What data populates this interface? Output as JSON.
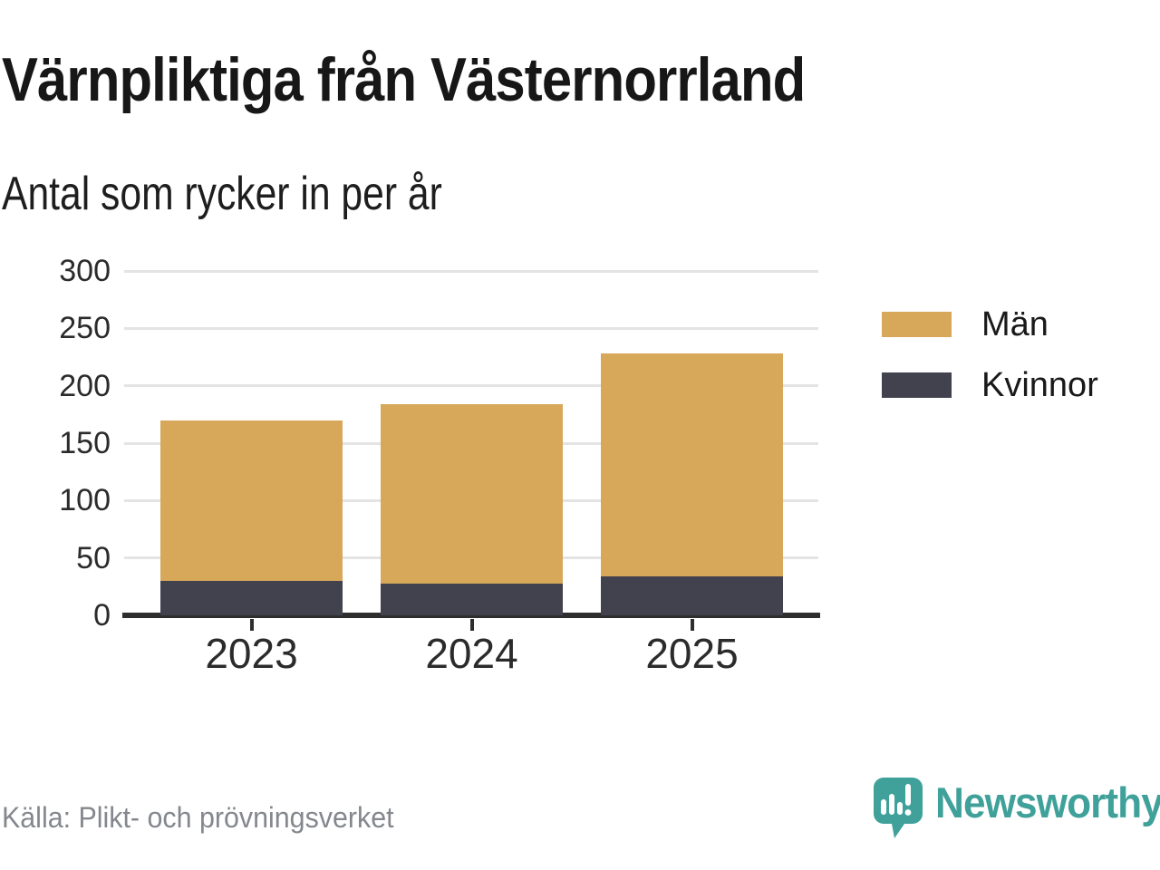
{
  "title": "Värnpliktiga från Västernorrland",
  "subtitle": "Antal som rycker in per år",
  "source": "Källa: Plikt- och prövningsverket",
  "brand": {
    "name": "Newsworthy",
    "color": "#3FA19A",
    "icon": "newsworthy-logo-icon"
  },
  "colors": {
    "man_gold": "#D8A85A",
    "kvinnor_dark": "#42424F",
    "gridline": "#E4E4E4",
    "axis": "#2E2E2E",
    "title_text": "#171717",
    "source_text": "#84878D"
  },
  "chart_data": {
    "type": "bar",
    "stacked": true,
    "title": "Värnpliktiga från Västernorrland",
    "subtitle": "Antal som rycker in per år",
    "categories": [
      "2023",
      "2024",
      "2025"
    ],
    "series": [
      {
        "name": "Män",
        "color": "#D8A85A",
        "values": [
          140,
          156,
          194
        ]
      },
      {
        "name": "Kvinnor",
        "color": "#42424F",
        "values": [
          30,
          28,
          34
        ]
      }
    ],
    "stack_bottom_to_top": [
      "Kvinnor",
      "Män"
    ],
    "totals": [
      170,
      184,
      228
    ],
    "xlabel": "",
    "ylabel": "",
    "ylim": [
      0,
      300
    ],
    "yticks": [
      0,
      50,
      100,
      150,
      200,
      250,
      300
    ],
    "grid": true,
    "legend_position": "right"
  }
}
